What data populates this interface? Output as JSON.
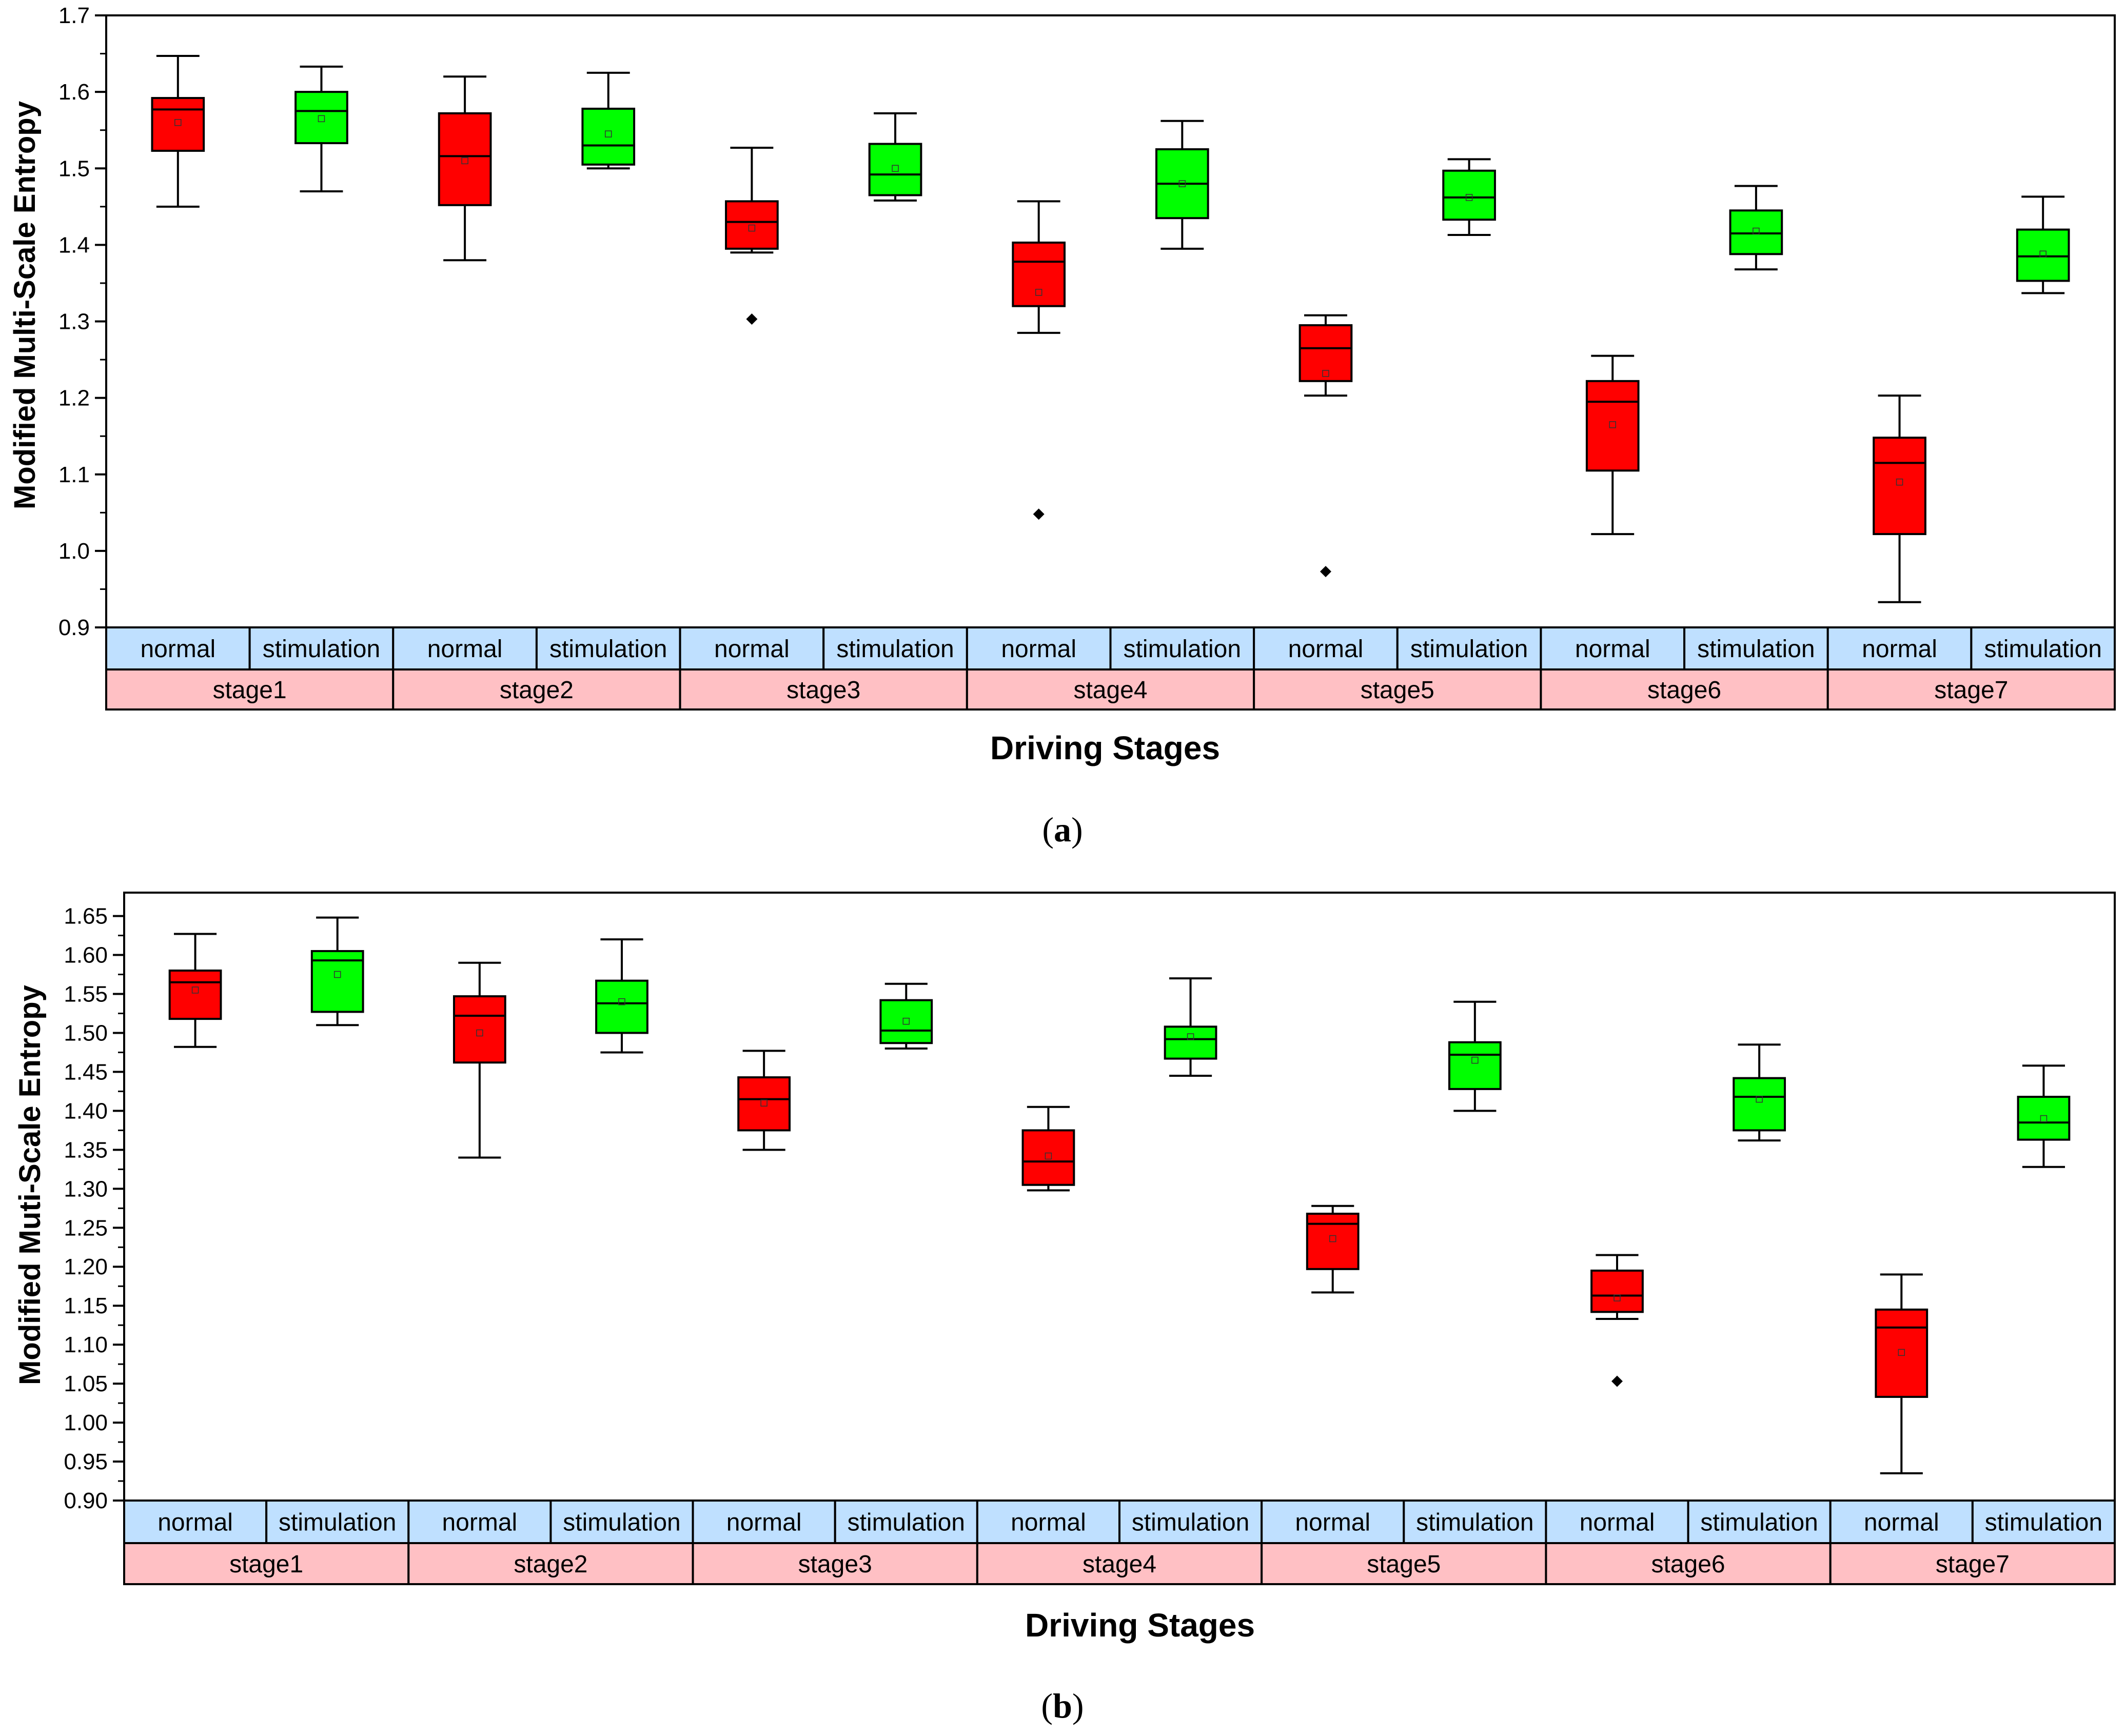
{
  "colors": {
    "normal": "#FF0000",
    "stimulation": "#00FF00",
    "group_band": "#BFE0FF",
    "stage_band": "#FFC0C4"
  },
  "chart_data": [
    {
      "type": "box",
      "panel_label": "(a)",
      "panel_letter": "a",
      "xlabel": "Driving Stages",
      "ylabel": "Modified Multi-Scale Entropy",
      "ylim": [
        0.9,
        1.7
      ],
      "yticks": [
        "0.9",
        "1.0",
        "1.1",
        "1.2",
        "1.3",
        "1.4",
        "1.5",
        "1.6",
        "1.7"
      ],
      "ytick_values": [
        0.9,
        1.0,
        1.1,
        1.2,
        1.3,
        1.4,
        1.5,
        1.6,
        1.7
      ],
      "groups": [
        "normal",
        "stimulation"
      ],
      "categories": [
        "stage1",
        "stage2",
        "stage3",
        "stage4",
        "stage5",
        "stage6",
        "stage7"
      ],
      "series": [
        {
          "name": "normal",
          "boxes": [
            {
              "min": 1.45,
              "q1": 1.523,
              "median": 1.577,
              "q3": 1.592,
              "max": 1.647,
              "mean": 1.56,
              "outliers": []
            },
            {
              "min": 1.38,
              "q1": 1.452,
              "median": 1.516,
              "q3": 1.572,
              "max": 1.62,
              "mean": 1.51,
              "outliers": []
            },
            {
              "min": 1.39,
              "q1": 1.395,
              "median": 1.43,
              "q3": 1.457,
              "max": 1.527,
              "mean": 1.422,
              "outliers": [
                1.303
              ]
            },
            {
              "min": 1.285,
              "q1": 1.32,
              "median": 1.378,
              "q3": 1.403,
              "max": 1.457,
              "mean": 1.338,
              "outliers": [
                1.048
              ]
            },
            {
              "min": 1.203,
              "q1": 1.222,
              "median": 1.265,
              "q3": 1.295,
              "max": 1.308,
              "mean": 1.232,
              "outliers": [
                0.973
              ]
            },
            {
              "min": 1.022,
              "q1": 1.105,
              "median": 1.195,
              "q3": 1.222,
              "max": 1.255,
              "mean": 1.165,
              "outliers": []
            },
            {
              "min": 0.933,
              "q1": 1.022,
              "median": 1.115,
              "q3": 1.148,
              "max": 1.203,
              "mean": 1.09,
              "outliers": []
            }
          ]
        },
        {
          "name": "stimulation",
          "boxes": [
            {
              "min": 1.47,
              "q1": 1.533,
              "median": 1.575,
              "q3": 1.6,
              "max": 1.633,
              "mean": 1.565,
              "outliers": []
            },
            {
              "min": 1.5,
              "q1": 1.505,
              "median": 1.53,
              "q3": 1.578,
              "max": 1.625,
              "mean": 1.545,
              "outliers": []
            },
            {
              "min": 1.458,
              "q1": 1.465,
              "median": 1.492,
              "q3": 1.532,
              "max": 1.572,
              "mean": 1.5,
              "outliers": []
            },
            {
              "min": 1.395,
              "q1": 1.435,
              "median": 1.48,
              "q3": 1.525,
              "max": 1.562,
              "mean": 1.48,
              "outliers": []
            },
            {
              "min": 1.413,
              "q1": 1.433,
              "median": 1.462,
              "q3": 1.497,
              "max": 1.512,
              "mean": 1.462,
              "outliers": []
            },
            {
              "min": 1.368,
              "q1": 1.388,
              "median": 1.415,
              "q3": 1.445,
              "max": 1.477,
              "mean": 1.418,
              "outliers": []
            },
            {
              "min": 1.337,
              "q1": 1.353,
              "median": 1.385,
              "q3": 1.42,
              "max": 1.463,
              "mean": 1.388,
              "outliers": []
            }
          ]
        }
      ]
    },
    {
      "type": "box",
      "panel_label": "(b)",
      "panel_letter": "b",
      "xlabel": "Driving Stages",
      "ylabel": "Modified Muti-Scale Entropy",
      "ylim": [
        0.9,
        1.68
      ],
      "yticks": [
        "0.90",
        "0.95",
        "1.00",
        "1.05",
        "1.10",
        "1.15",
        "1.20",
        "1.25",
        "1.30",
        "1.35",
        "1.40",
        "1.45",
        "1.50",
        "1.55",
        "1.60",
        "1.65"
      ],
      "ytick_values": [
        0.9,
        0.95,
        1.0,
        1.05,
        1.1,
        1.15,
        1.2,
        1.25,
        1.3,
        1.35,
        1.4,
        1.45,
        1.5,
        1.55,
        1.6,
        1.65
      ],
      "groups": [
        "normal",
        "stimulation"
      ],
      "categories": [
        "stage1",
        "stage2",
        "stage3",
        "stage4",
        "stage5",
        "stage6",
        "stage7"
      ],
      "series": [
        {
          "name": "normal",
          "boxes": [
            {
              "min": 1.482,
              "q1": 1.518,
              "median": 1.565,
              "q3": 1.58,
              "max": 1.627,
              "mean": 1.555,
              "outliers": []
            },
            {
              "min": 1.34,
              "q1": 1.462,
              "median": 1.522,
              "q3": 1.547,
              "max": 1.59,
              "mean": 1.5,
              "outliers": []
            },
            {
              "min": 1.35,
              "q1": 1.375,
              "median": 1.415,
              "q3": 1.443,
              "max": 1.477,
              "mean": 1.41,
              "outliers": []
            },
            {
              "min": 1.298,
              "q1": 1.305,
              "median": 1.335,
              "q3": 1.375,
              "max": 1.405,
              "mean": 1.342,
              "outliers": []
            },
            {
              "min": 1.167,
              "q1": 1.197,
              "median": 1.255,
              "q3": 1.268,
              "max": 1.278,
              "mean": 1.236,
              "outliers": []
            },
            {
              "min": 1.133,
              "q1": 1.142,
              "median": 1.163,
              "q3": 1.195,
              "max": 1.215,
              "mean": 1.16,
              "outliers": [
                1.053
              ]
            },
            {
              "min": 0.935,
              "q1": 1.033,
              "median": 1.122,
              "q3": 1.145,
              "max": 1.19,
              "mean": 1.09,
              "outliers": []
            }
          ]
        },
        {
          "name": "stimulation",
          "boxes": [
            {
              "min": 1.51,
              "q1": 1.527,
              "median": 1.593,
              "q3": 1.605,
              "max": 1.648,
              "mean": 1.575,
              "outliers": []
            },
            {
              "min": 1.475,
              "q1": 1.5,
              "median": 1.538,
              "q3": 1.567,
              "max": 1.62,
              "mean": 1.54,
              "outliers": []
            },
            {
              "min": 1.48,
              "q1": 1.487,
              "median": 1.503,
              "q3": 1.542,
              "max": 1.563,
              "mean": 1.515,
              "outliers": []
            },
            {
              "min": 1.445,
              "q1": 1.467,
              "median": 1.492,
              "q3": 1.508,
              "max": 1.57,
              "mean": 1.495,
              "outliers": []
            },
            {
              "min": 1.4,
              "q1": 1.428,
              "median": 1.472,
              "q3": 1.488,
              "max": 1.54,
              "mean": 1.465,
              "outliers": []
            },
            {
              "min": 1.362,
              "q1": 1.375,
              "median": 1.418,
              "q3": 1.442,
              "max": 1.485,
              "mean": 1.415,
              "outliers": []
            },
            {
              "min": 1.328,
              "q1": 1.363,
              "median": 1.385,
              "q3": 1.418,
              "max": 1.458,
              "mean": 1.39,
              "outliers": []
            }
          ]
        }
      ]
    }
  ]
}
